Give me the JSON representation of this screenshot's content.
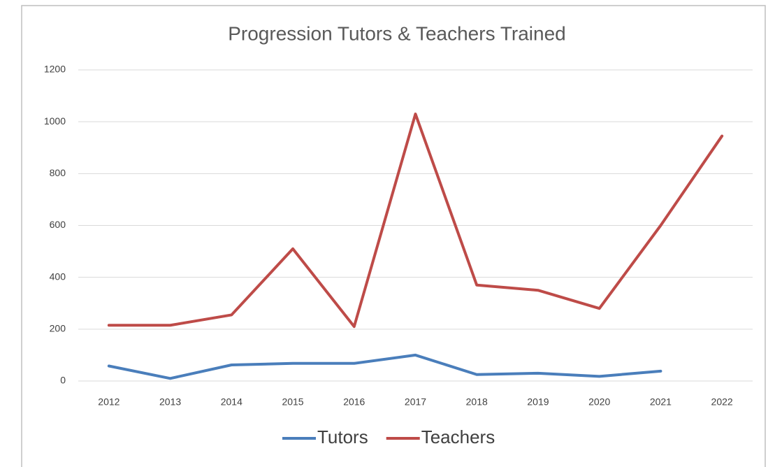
{
  "chart_data": {
    "type": "line",
    "title": "Progression Tutors & Teachers Trained",
    "categories": [
      "2012",
      "2013",
      "2014",
      "2015",
      "2016",
      "2017",
      "2018",
      "2019",
      "2020",
      "2021",
      "2022"
    ],
    "series": [
      {
        "name": "Tutors",
        "color": "#4a7ebb",
        "values": [
          58,
          10,
          62,
          68,
          68,
          100,
          25,
          30,
          18,
          38,
          null
        ]
      },
      {
        "name": "Teachers",
        "color": "#be4b48",
        "values": [
          215,
          215,
          255,
          510,
          210,
          1030,
          370,
          350,
          280,
          600,
          945
        ]
      }
    ],
    "ylim": [
      0,
      1200
    ],
    "yticks": [
      0,
      200,
      400,
      600,
      800,
      1000,
      1200
    ],
    "grid": true,
    "legend": "bottom"
  }
}
